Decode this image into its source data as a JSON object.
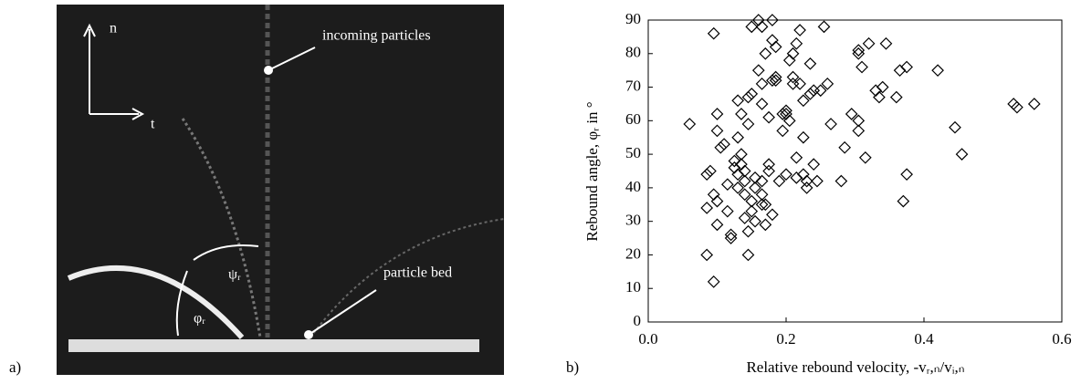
{
  "photo": {
    "panel_label": "a)",
    "axis_n": "n",
    "axis_t": "t",
    "incoming": "incoming particles",
    "bed": "particle bed",
    "psi": "ψᵣ",
    "phi": "φᵣ"
  },
  "chart_data": {
    "type": "scatter",
    "panel_label": "b)",
    "x_label": "Relative rebound velocity, -vᵣ,ₙ/vᵢ,ₙ",
    "y_label": "Rebound angle, φᵣ in °",
    "color": "#000000",
    "xlim": [
      0,
      0.6
    ],
    "ylim": [
      0,
      90
    ],
    "xticks": [
      {
        "value": 0,
        "label": "0.0"
      },
      0.2,
      0.4,
      0.6
    ],
    "yticks": [
      0,
      10,
      20,
      30,
      40,
      50,
      60,
      70,
      80,
      90
    ],
    "x": [
      0.06,
      0.085,
      0.09,
      0.085,
      0.095,
      0.095,
      0.1,
      0.1,
      0.095,
      0.1,
      0.1,
      0.085,
      0.105,
      0.11,
      0.115,
      0.115,
      0.12,
      0.12,
      0.125,
      0.125,
      0.13,
      0.13,
      0.13,
      0.13,
      0.135,
      0.135,
      0.135,
      0.14,
      0.14,
      0.14,
      0.14,
      0.145,
      0.145,
      0.145,
      0.145,
      0.15,
      0.15,
      0.15,
      0.15,
      0.155,
      0.155,
      0.155,
      0.16,
      0.16,
      0.165,
      0.165,
      0.165,
      0.165,
      0.165,
      0.165,
      0.17,
      0.17,
      0.17,
      0.175,
      0.175,
      0.175,
      0.18,
      0.18,
      0.18,
      0.18,
      0.185,
      0.185,
      0.185,
      0.19,
      0.195,
      0.195,
      0.2,
      0.2,
      0.2,
      0.205,
      0.205,
      0.21,
      0.21,
      0.21,
      0.215,
      0.215,
      0.215,
      0.22,
      0.22,
      0.225,
      0.225,
      0.225,
      0.23,
      0.23,
      0.235,
      0.235,
      0.24,
      0.24,
      0.245,
      0.25,
      0.255,
      0.26,
      0.265,
      0.28,
      0.285,
      0.295,
      0.305,
      0.305,
      0.305,
      0.305,
      0.31,
      0.315,
      0.32,
      0.33,
      0.335,
      0.34,
      0.345,
      0.36,
      0.365,
      0.37,
      0.375,
      0.375,
      0.42,
      0.445,
      0.455,
      0.53,
      0.535,
      0.56
    ],
    "y": [
      59,
      44,
      45,
      20,
      12,
      86,
      62,
      57,
      38,
      36,
      29,
      34,
      52,
      53,
      41,
      33,
      26,
      25,
      48,
      46,
      44,
      40,
      66,
      55,
      62,
      50,
      47,
      42,
      38,
      45,
      31,
      27,
      20,
      59,
      67,
      68,
      88,
      36,
      33,
      30,
      43,
      40,
      90,
      75,
      88,
      71,
      65,
      42,
      38,
      35,
      80,
      35,
      29,
      47,
      45,
      61,
      72,
      90,
      84,
      32,
      72,
      82,
      73,
      42,
      57,
      62,
      63,
      62,
      44,
      60,
      78,
      80,
      73,
      71,
      83,
      49,
      43,
      87,
      71,
      66,
      55,
      44,
      40,
      42,
      68,
      77,
      47,
      69,
      42,
      69,
      88,
      71,
      59,
      42,
      52,
      62,
      81,
      80,
      60,
      57,
      76,
      49,
      83,
      69,
      67,
      70,
      83,
      67,
      75,
      36,
      76,
      44,
      75,
      58,
      50,
      65,
      64,
      65
    ]
  }
}
